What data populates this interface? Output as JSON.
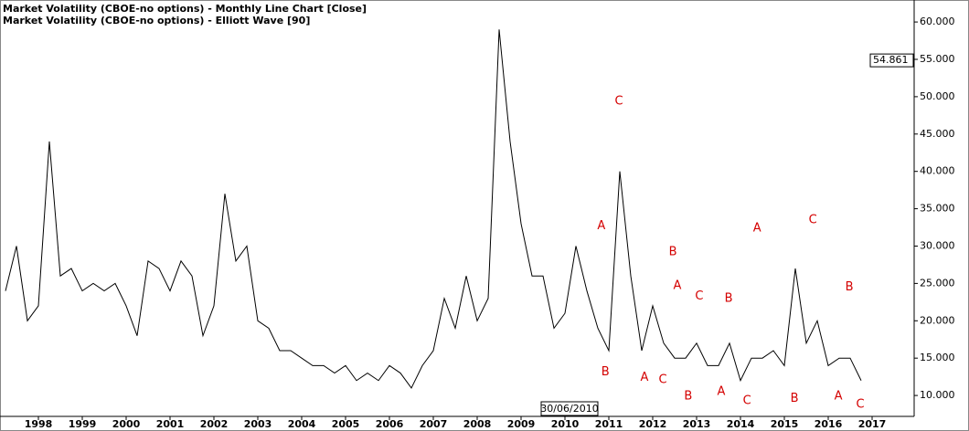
{
  "chart_data": {
    "type": "line",
    "title": "Market Volatility (CBOE-no options) - Monthly Line Chart [Close]",
    "subtitle": "Market Volatility (CBOE-no options) - Elliott Wave [90]",
    "cursor_label": "30/06/2010",
    "marker_value": 54.861,
    "x": [
      1997.25,
      1997.5,
      1997.75,
      1998,
      1998.25,
      1998.5,
      1998.75,
      1999,
      1999.25,
      1999.5,
      1999.75,
      2000,
      2000.25,
      2000.5,
      2000.75,
      2001,
      2001.25,
      2001.5,
      2001.75,
      2002,
      2002.25,
      2002.5,
      2002.75,
      2003,
      2003.25,
      2003.5,
      2003.75,
      2004,
      2004.25,
      2004.5,
      2004.75,
      2005,
      2005.25,
      2005.5,
      2005.75,
      2006,
      2006.25,
      2006.5,
      2006.75,
      2007,
      2007.25,
      2007.5,
      2007.75,
      2008,
      2008.25,
      2008.5,
      2008.75,
      2009,
      2009.25,
      2009.5,
      2009.75,
      2010,
      2010.25,
      2010.5,
      2010.75,
      2011,
      2011.25,
      2011.5,
      2011.75,
      2012,
      2012.25,
      2012.5,
      2012.75,
      2013,
      2013.25,
      2013.5,
      2013.75,
      2014,
      2014.25,
      2014.5,
      2014.75,
      2015,
      2015.25,
      2015.5,
      2015.75,
      2016,
      2016.25,
      2016.5,
      2016.75
    ],
    "series": [
      {
        "name": "Market Volatility (CBOE-no options)",
        "color": "#000000",
        "values": [
          24,
          30,
          20,
          22,
          44,
          26,
          27,
          24,
          25,
          24,
          25,
          22,
          18,
          28,
          27,
          24,
          28,
          26,
          18,
          22,
          37,
          28,
          30,
          20,
          19,
          16,
          16,
          15,
          14,
          14,
          13,
          14,
          12,
          13,
          12,
          14,
          13,
          11,
          14,
          16,
          23,
          19,
          26,
          20,
          23,
          59,
          44,
          33,
          26,
          26,
          19,
          21,
          30,
          24,
          19,
          16,
          40,
          26,
          16,
          22,
          17,
          15,
          15,
          17,
          14,
          14,
          17,
          12,
          15,
          15,
          16,
          14,
          27,
          17,
          20,
          14,
          15,
          15,
          12
        ]
      }
    ],
    "annotations": [
      {
        "text": "C",
        "x": 2011.23,
        "y": 49.4,
        "color": "#d40000"
      },
      {
        "text": "A",
        "x": 2010.83,
        "y": 32.7,
        "color": "#d40000"
      },
      {
        "text": "B",
        "x": 2010.92,
        "y": 13.1,
        "color": "#d40000"
      },
      {
        "text": "B",
        "x": 2012.46,
        "y": 29.2,
        "color": "#d40000"
      },
      {
        "text": "A",
        "x": 2011.81,
        "y": 12.4,
        "color": "#d40000"
      },
      {
        "text": "C",
        "x": 2012.23,
        "y": 12.1,
        "color": "#d40000"
      },
      {
        "text": "A",
        "x": 2012.56,
        "y": 24.7,
        "color": "#d40000"
      },
      {
        "text": "C",
        "x": 2013.06,
        "y": 23.3,
        "color": "#d40000"
      },
      {
        "text": "B",
        "x": 2012.81,
        "y": 9.9,
        "color": "#d40000"
      },
      {
        "text": "B",
        "x": 2013.73,
        "y": 23.0,
        "color": "#d40000"
      },
      {
        "text": "A",
        "x": 2013.56,
        "y": 10.5,
        "color": "#d40000"
      },
      {
        "text": "C",
        "x": 2014.15,
        "y": 9.3,
        "color": "#d40000"
      },
      {
        "text": "A",
        "x": 2014.38,
        "y": 32.4,
        "color": "#d40000"
      },
      {
        "text": "C",
        "x": 2015.65,
        "y": 33.5,
        "color": "#d40000"
      },
      {
        "text": "B",
        "x": 2015.23,
        "y": 9.6,
        "color": "#d40000"
      },
      {
        "text": "B",
        "x": 2016.48,
        "y": 24.5,
        "color": "#d40000"
      },
      {
        "text": "A",
        "x": 2016.23,
        "y": 9.9,
        "color": "#d40000"
      },
      {
        "text": "C",
        "x": 2016.73,
        "y": 8.8,
        "color": "#d40000"
      }
    ],
    "xlim": [
      1997.125,
      2017.958
    ],
    "xticks": [
      1998,
      1999,
      2000,
      2001,
      2002,
      2003,
      2004,
      2005,
      2006,
      2007,
      2008,
      2009,
      2010,
      2011,
      2012,
      2013,
      2014,
      2015,
      2016,
      2017
    ],
    "ylim": [
      7.2,
      62.7
    ],
    "yticks": [
      {
        "value": 10,
        "label": "10.000"
      },
      {
        "value": 15,
        "label": "15.000"
      },
      {
        "value": 20,
        "label": "20.000"
      },
      {
        "value": 25,
        "label": "25.000"
      },
      {
        "value": 30,
        "label": "30.000"
      },
      {
        "value": 35,
        "label": "35.000"
      },
      {
        "value": 40,
        "label": "40.000"
      },
      {
        "value": 45,
        "label": "45.000"
      },
      {
        "value": 50,
        "label": "50.000"
      },
      {
        "value": 55,
        "label": "55.000"
      },
      {
        "value": 60,
        "label": "60.000"
      }
    ],
    "grid": false
  }
}
